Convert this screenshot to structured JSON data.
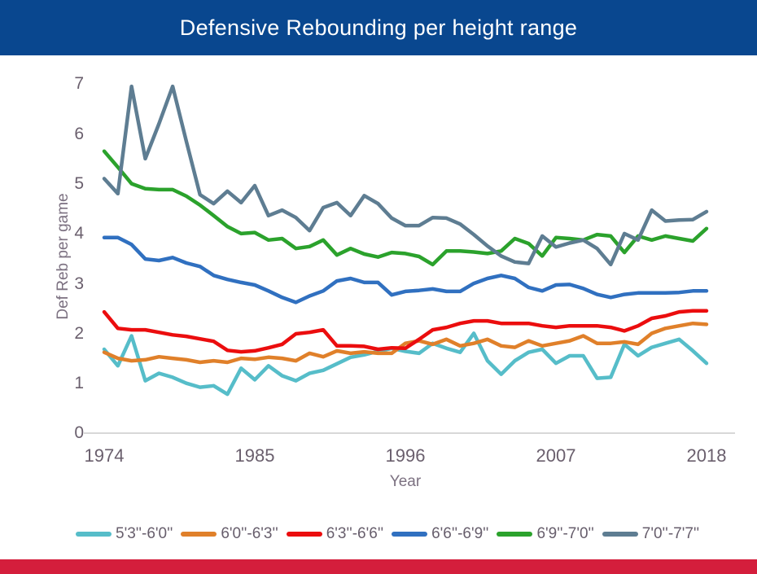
{
  "header": {
    "title": "Defensive Rebounding per height range",
    "bar_color": "#09478f",
    "text_color": "#ffffff"
  },
  "footer": {
    "bar_color": "#d41e3c"
  },
  "chart_data": {
    "type": "line",
    "title": "Defensive Rebounding per height range",
    "xlabel": "Year",
    "ylabel": "Def Reb per game",
    "xlim": [
      1974,
      2018
    ],
    "ylim": [
      0,
      7
    ],
    "x_ticks": [
      "1974",
      "1985",
      "1996",
      "2007",
      "2018"
    ],
    "y_ticks": [
      "0",
      "1",
      "2",
      "3",
      "4",
      "5",
      "6",
      "7"
    ],
    "grid": false,
    "legend_position": "bottom",
    "axis_line_color": "#d8d8d8",
    "years": [
      1974,
      1975,
      1976,
      1977,
      1978,
      1979,
      1980,
      1981,
      1982,
      1983,
      1984,
      1985,
      1986,
      1987,
      1988,
      1989,
      1990,
      1991,
      1992,
      1993,
      1994,
      1995,
      1996,
      1997,
      1998,
      1999,
      2000,
      2001,
      2002,
      2003,
      2004,
      2005,
      2006,
      2007,
      2008,
      2009,
      2010,
      2011,
      2012,
      2013,
      2014,
      2015,
      2016,
      2017,
      2018
    ],
    "series": [
      {
        "name": "5'3''-6'0''",
        "color": "#56bdc9",
        "values": [
          1.68,
          1.35,
          1.95,
          1.05,
          1.2,
          1.12,
          1.0,
          0.92,
          0.95,
          0.78,
          1.3,
          1.07,
          1.35,
          1.15,
          1.05,
          1.2,
          1.26,
          1.39,
          1.52,
          1.57,
          1.64,
          1.7,
          1.64,
          1.6,
          1.8,
          1.7,
          1.62,
          2.0,
          1.45,
          1.18,
          1.45,
          1.62,
          1.68,
          1.4,
          1.55,
          1.55,
          1.1,
          1.12,
          1.78,
          1.55,
          1.72,
          1.8,
          1.88,
          1.65,
          1.4
        ]
      },
      {
        "name": "6'0''-6'3''",
        "color": "#e0802a",
        "values": [
          1.62,
          1.5,
          1.45,
          1.47,
          1.53,
          1.5,
          1.47,
          1.42,
          1.45,
          1.42,
          1.5,
          1.48,
          1.52,
          1.5,
          1.45,
          1.6,
          1.53,
          1.65,
          1.6,
          1.63,
          1.6,
          1.6,
          1.8,
          1.85,
          1.78,
          1.88,
          1.75,
          1.8,
          1.88,
          1.75,
          1.72,
          1.85,
          1.75,
          1.8,
          1.85,
          1.95,
          1.8,
          1.8,
          1.83,
          1.78,
          2.0,
          2.1,
          2.15,
          2.2,
          2.18
        ]
      },
      {
        "name": "6'3''-6'6''",
        "color": "#eb0d0e",
        "values": [
          2.43,
          2.1,
          2.07,
          2.07,
          2.02,
          1.97,
          1.94,
          1.89,
          1.84,
          1.66,
          1.63,
          1.65,
          1.71,
          1.78,
          1.99,
          2.02,
          2.07,
          1.75,
          1.75,
          1.74,
          1.68,
          1.71,
          1.7,
          1.88,
          2.07,
          2.12,
          2.2,
          2.25,
          2.25,
          2.2,
          2.2,
          2.2,
          2.15,
          2.12,
          2.15,
          2.15,
          2.15,
          2.12,
          2.05,
          2.15,
          2.3,
          2.35,
          2.43,
          2.45,
          2.45
        ]
      },
      {
        "name": "6'6''-6'9''",
        "color": "#3070c0",
        "values": [
          3.92,
          3.92,
          3.78,
          3.49,
          3.46,
          3.52,
          3.41,
          3.34,
          3.16,
          3.08,
          3.02,
          2.97,
          2.85,
          2.72,
          2.62,
          2.75,
          2.85,
          3.05,
          3.1,
          3.02,
          3.02,
          2.77,
          2.84,
          2.86,
          2.89,
          2.84,
          2.84,
          3.0,
          3.1,
          3.16,
          3.1,
          2.92,
          2.85,
          2.97,
          2.98,
          2.9,
          2.78,
          2.72,
          2.78,
          2.81,
          2.81,
          2.81,
          2.82,
          2.85,
          2.85
        ]
      },
      {
        "name": "6'9''-7'0''",
        "color": "#2ba22c",
        "values": [
          5.65,
          5.33,
          5.0,
          4.9,
          4.88,
          4.88,
          4.75,
          4.57,
          4.36,
          4.14,
          4.0,
          4.02,
          3.87,
          3.9,
          3.7,
          3.74,
          3.87,
          3.57,
          3.7,
          3.59,
          3.53,
          3.62,
          3.6,
          3.54,
          3.38,
          3.65,
          3.65,
          3.63,
          3.6,
          3.65,
          3.9,
          3.8,
          3.55,
          3.92,
          3.9,
          3.87,
          3.98,
          3.95,
          3.62,
          3.95,
          3.87,
          3.95,
          3.9,
          3.85,
          4.1
        ]
      },
      {
        "name": "7'0''-7'7''",
        "color": "#5e7d92",
        "values": [
          5.1,
          4.8,
          6.95,
          5.5,
          6.2,
          6.95,
          5.85,
          4.78,
          4.6,
          4.85,
          4.62,
          4.96,
          4.36,
          4.47,
          4.32,
          4.06,
          4.52,
          4.62,
          4.36,
          4.76,
          4.6,
          4.31,
          4.16,
          4.16,
          4.32,
          4.31,
          4.19,
          3.98,
          3.75,
          3.55,
          3.43,
          3.4,
          3.95,
          3.73,
          3.81,
          3.87,
          3.7,
          3.38,
          4.0,
          3.87,
          4.47,
          4.25,
          4.27,
          4.28,
          4.44
        ]
      }
    ]
  }
}
